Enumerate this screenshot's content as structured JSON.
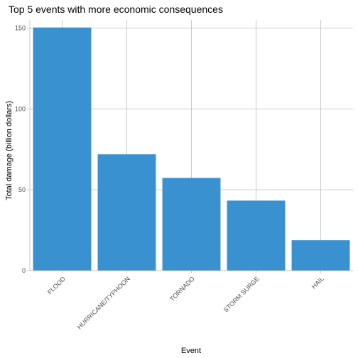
{
  "chart_data": {
    "type": "bar",
    "title": "Top 5 events with more economic consequences",
    "xlabel": "Event",
    "ylabel": "Total damage (billion dollars)",
    "categories": [
      "FLOOD",
      "HURRICANE/TYPHOON",
      "TORNADO",
      "STORM SURGE",
      "HAIL"
    ],
    "values": [
      150.3,
      71.9,
      57.3,
      43.3,
      18.8
    ],
    "ylim": [
      0,
      155
    ],
    "yticks": [
      0,
      50,
      100,
      150
    ],
    "grid": true,
    "bar_color": "#3a91d0"
  }
}
